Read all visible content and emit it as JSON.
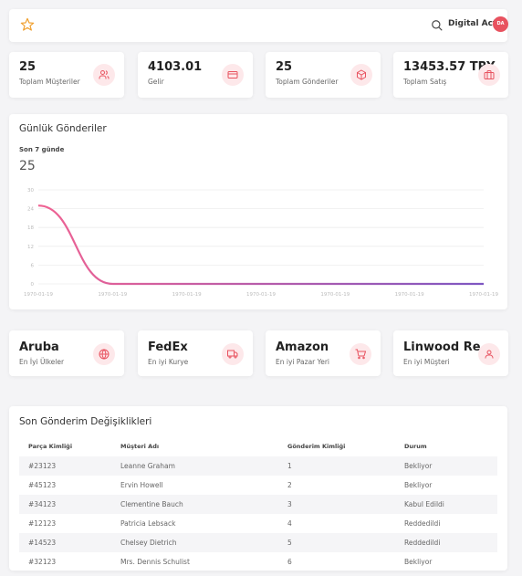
{
  "topbar": {
    "favorite_icon": "star-icon",
    "search_icon": "search-icon",
    "user_name": "Digital Act",
    "user_initials": "DA",
    "avatar_color": "#e8525f"
  },
  "stats": [
    {
      "value": "25",
      "label": "Toplam Müşteriler",
      "icon": "users-icon"
    },
    {
      "value": "4103.01",
      "label": "Gelir",
      "icon": "credit-card-icon"
    },
    {
      "value": "25",
      "label": "Toplam Gönderiler",
      "icon": "package-icon"
    },
    {
      "value": "13453.57 TRY",
      "label": "Toplam Satış",
      "icon": "briefcase-icon"
    }
  ],
  "daily_shipments": {
    "title": "Günlük Gönderiler",
    "subtitle": "Son 7 günde",
    "total": "25"
  },
  "chart_data": {
    "type": "area",
    "x": [
      "1970-01-19",
      "1970-01-19",
      "1970-01-19",
      "1970-01-19",
      "1970-01-19",
      "1970-01-19",
      "1970-01-19"
    ],
    "y_ticks": [
      "30",
      "24",
      "18",
      "12",
      "6",
      "0"
    ],
    "series": [
      {
        "values": [
          25,
          0,
          0,
          0,
          0,
          0,
          0
        ]
      }
    ],
    "ylim": [
      0,
      30
    ],
    "grid": true,
    "colors": {
      "start": "#f06292",
      "end": "#7e57c2"
    }
  },
  "best": [
    {
      "value": "Aruba",
      "label": "En İyi Ülkeler",
      "icon": "globe-icon"
    },
    {
      "value": "FedEx",
      "label": "En iyi Kurye",
      "icon": "truck-icon"
    },
    {
      "value": "Amazon",
      "label": "En iyi Pazar Yeri",
      "icon": "shopping-cart-icon"
    },
    {
      "value": "Linwood Re",
      "label": "En iyi Müşteri",
      "icon": "user-icon"
    }
  ],
  "recent_changes": {
    "title": "Son Gönderim Değişiklikleri",
    "columns": [
      "Parça Kimliği",
      "Müşteri Adı",
      "Gönderim Kimliği",
      "Durum"
    ],
    "rows": [
      [
        "#23123",
        "Leanne Graham",
        "1",
        "Bekliyor"
      ],
      [
        "#45123",
        "Ervin Howell",
        "2",
        "Bekliyor"
      ],
      [
        "#34123",
        "Clementine Bauch",
        "3",
        "Kabul Edildi"
      ],
      [
        "#12123",
        "Patricia Lebsack",
        "4",
        "Reddedildi"
      ],
      [
        "#14523",
        "Chelsey Dietrich",
        "5",
        "Reddedildi"
      ],
      [
        "#32123",
        "Mrs. Dennis Schulist",
        "6",
        "Bekliyor"
      ]
    ]
  }
}
